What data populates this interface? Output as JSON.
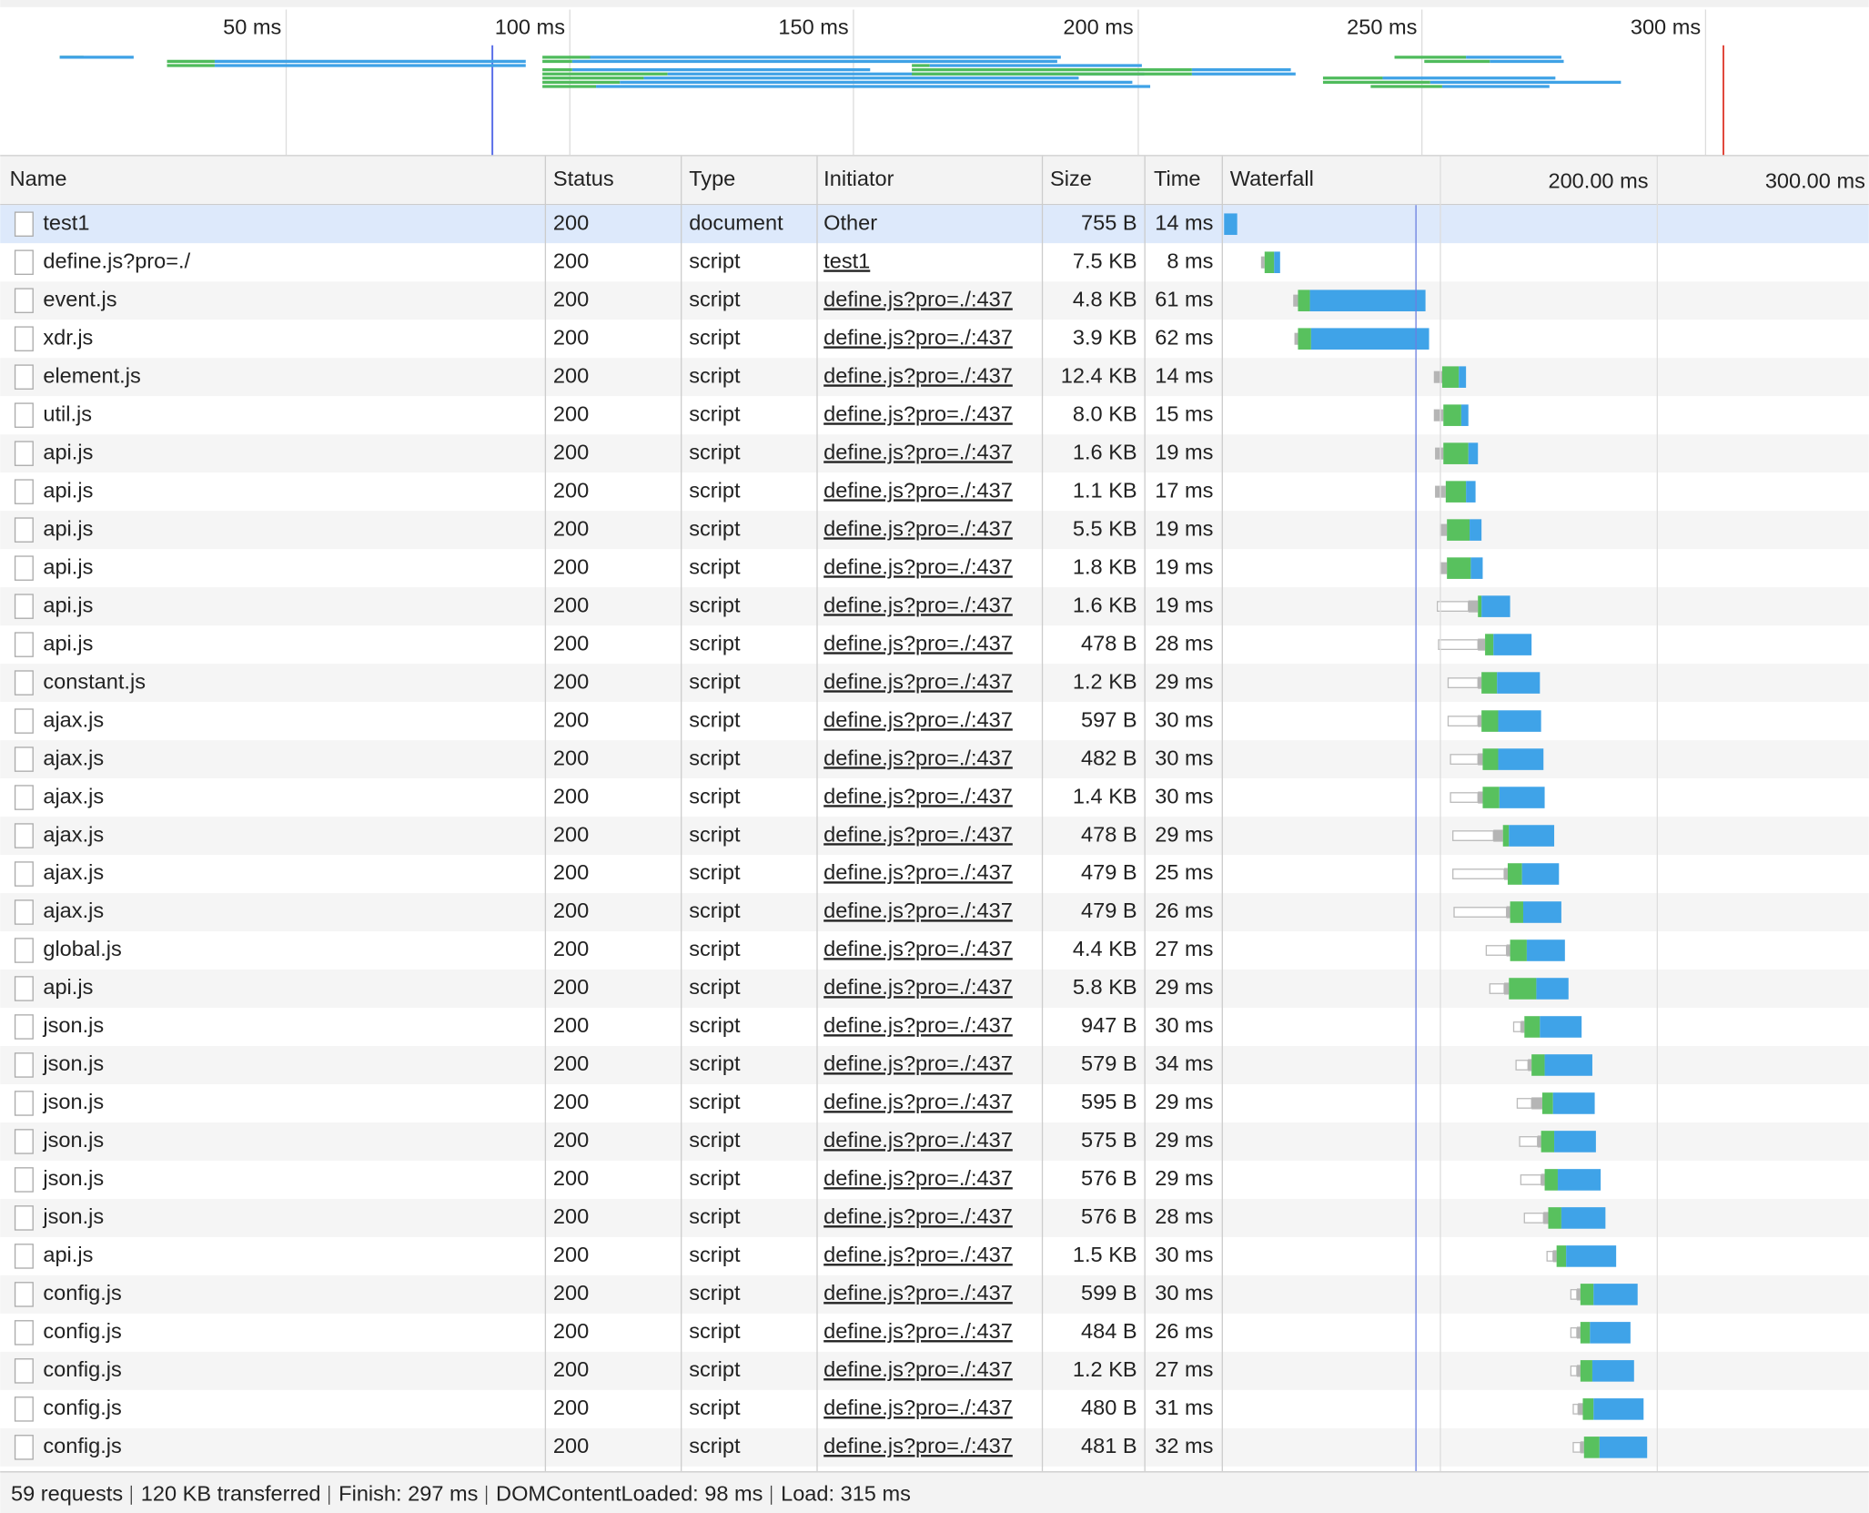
{
  "overview": {
    "ticks": [
      "50 ms",
      "100 ms",
      "150 ms",
      "200 ms",
      "250 ms",
      "300 ms"
    ]
  },
  "table": {
    "columns": [
      "Name",
      "Status",
      "Type",
      "Initiator",
      "Size",
      "Time",
      "Waterfall"
    ],
    "waterfall_ticks": [
      "200.00 ms",
      "300.00 ms"
    ],
    "rows": [
      [
        "test1",
        "200",
        "document",
        "Other",
        "755 B",
        "14 ms"
      ],
      [
        "define.js?pro=./",
        "200",
        "script",
        "test1",
        "7.5 KB",
        "8 ms"
      ],
      [
        "event.js",
        "200",
        "script",
        "define.js?pro=./:437",
        "4.8 KB",
        "61 ms"
      ],
      [
        "xdr.js",
        "200",
        "script",
        "define.js?pro=./:437",
        "3.9 KB",
        "62 ms"
      ],
      [
        "element.js",
        "200",
        "script",
        "define.js?pro=./:437",
        "12.4 KB",
        "14 ms"
      ],
      [
        "util.js",
        "200",
        "script",
        "define.js?pro=./:437",
        "8.0 KB",
        "15 ms"
      ],
      [
        "api.js",
        "200",
        "script",
        "define.js?pro=./:437",
        "1.6 KB",
        "19 ms"
      ],
      [
        "api.js",
        "200",
        "script",
        "define.js?pro=./:437",
        "1.1 KB",
        "17 ms"
      ],
      [
        "api.js",
        "200",
        "script",
        "define.js?pro=./:437",
        "5.5 KB",
        "19 ms"
      ],
      [
        "api.js",
        "200",
        "script",
        "define.js?pro=./:437",
        "1.8 KB",
        "19 ms"
      ],
      [
        "api.js",
        "200",
        "script",
        "define.js?pro=./:437",
        "1.6 KB",
        "19 ms"
      ],
      [
        "api.js",
        "200",
        "script",
        "define.js?pro=./:437",
        "478 B",
        "28 ms"
      ],
      [
        "constant.js",
        "200",
        "script",
        "define.js?pro=./:437",
        "1.2 KB",
        "29 ms"
      ],
      [
        "ajax.js",
        "200",
        "script",
        "define.js?pro=./:437",
        "597 B",
        "30 ms"
      ],
      [
        "ajax.js",
        "200",
        "script",
        "define.js?pro=./:437",
        "482 B",
        "30 ms"
      ],
      [
        "ajax.js",
        "200",
        "script",
        "define.js?pro=./:437",
        "1.4 KB",
        "30 ms"
      ],
      [
        "ajax.js",
        "200",
        "script",
        "define.js?pro=./:437",
        "478 B",
        "29 ms"
      ],
      [
        "ajax.js",
        "200",
        "script",
        "define.js?pro=./:437",
        "479 B",
        "25 ms"
      ],
      [
        "ajax.js",
        "200",
        "script",
        "define.js?pro=./:437",
        "479 B",
        "26 ms"
      ],
      [
        "global.js",
        "200",
        "script",
        "define.js?pro=./:437",
        "4.4 KB",
        "27 ms"
      ],
      [
        "api.js",
        "200",
        "script",
        "define.js?pro=./:437",
        "5.8 KB",
        "29 ms"
      ],
      [
        "json.js",
        "200",
        "script",
        "define.js?pro=./:437",
        "947 B",
        "30 ms"
      ],
      [
        "json.js",
        "200",
        "script",
        "define.js?pro=./:437",
        "579 B",
        "34 ms"
      ],
      [
        "json.js",
        "200",
        "script",
        "define.js?pro=./:437",
        "595 B",
        "29 ms"
      ],
      [
        "json.js",
        "200",
        "script",
        "define.js?pro=./:437",
        "575 B",
        "29 ms"
      ],
      [
        "json.js",
        "200",
        "script",
        "define.js?pro=./:437",
        "576 B",
        "29 ms"
      ],
      [
        "json.js",
        "200",
        "script",
        "define.js?pro=./:437",
        "576 B",
        "28 ms"
      ],
      [
        "api.js",
        "200",
        "script",
        "define.js?pro=./:437",
        "1.5 KB",
        "30 ms"
      ],
      [
        "config.js",
        "200",
        "script",
        "define.js?pro=./:437",
        "599 B",
        "30 ms"
      ],
      [
        "config.js",
        "200",
        "script",
        "define.js?pro=./:437",
        "484 B",
        "26 ms"
      ],
      [
        "config.js",
        "200",
        "script",
        "define.js?pro=./:437",
        "1.2 KB",
        "27 ms"
      ],
      [
        "config.js",
        "200",
        "script",
        "define.js?pro=./:437",
        "480 B",
        "31 ms"
      ],
      [
        "config.js",
        "200",
        "script",
        "define.js?pro=./:437",
        "481 B",
        "32 ms"
      ]
    ]
  },
  "footer": [
    "59 requests",
    "120 KB transferred",
    "Finish: 297 ms",
    "DOMContentLoaded: 98 ms",
    "Load: 315 ms"
  ]
}
